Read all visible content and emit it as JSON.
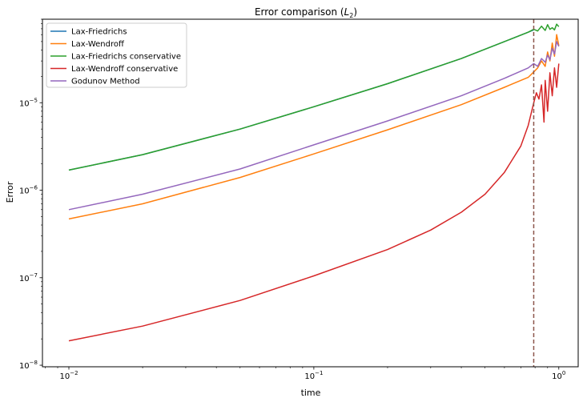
{
  "chart_data": {
    "type": "line",
    "title": "Error comparison (L2)",
    "title_main": "Error comparison (",
    "title_sym": "L",
    "title_sub": "2",
    "title_close": ")",
    "xlabel": "time",
    "ylabel": "Error",
    "xscale": "log",
    "yscale": "log",
    "xlim": [
      0.0078,
      1.2
    ],
    "ylim": [
      9.6e-09,
      9e-05
    ],
    "grid": false,
    "legend_position": "top-left",
    "x_ticks": [
      {
        "value": 0.01,
        "base": "10",
        "exp": "−2"
      },
      {
        "value": 0.1,
        "base": "10",
        "exp": "−1"
      },
      {
        "value": 1,
        "base": "10",
        "exp": "0"
      }
    ],
    "y_ticks": [
      {
        "value": 1e-08,
        "base": "10",
        "exp": "−8"
      },
      {
        "value": 1e-07,
        "base": "10",
        "exp": "−7"
      },
      {
        "value": 1e-06,
        "base": "10",
        "exp": "−6"
      },
      {
        "value": 1e-05,
        "base": "10",
        "exp": "−5"
      }
    ],
    "vline": {
      "x": 0.79,
      "color": "#8c564b",
      "style": "dashed"
    },
    "series": [
      {
        "name": "Lax-Friedrichs",
        "color": "#1f77b4",
        "x": [
          0.01,
          0.02,
          0.05,
          0.1,
          0.2,
          0.4,
          0.6,
          0.75,
          0.79
        ],
        "y": [
          1.7e-06,
          2.55e-06,
          5e-06,
          9e-06,
          1.65e-05,
          3.2e-05,
          5e-05,
          6.4e-05,
          6.8e-05
        ]
      },
      {
        "name": "Lax-Wendroff",
        "color": "#ff7f0e",
        "x": [
          0.01,
          0.02,
          0.05,
          0.1,
          0.2,
          0.4,
          0.6,
          0.75,
          0.79,
          0.82,
          0.85,
          0.88,
          0.9,
          0.92,
          0.94,
          0.96,
          0.98,
          1.0
        ],
        "y": [
          4.7e-07,
          7e-07,
          1.4e-06,
          2.6e-06,
          4.9e-06,
          9.5e-06,
          1.5e-05,
          1.95e-05,
          2.25e-05,
          2.5e-05,
          3e-05,
          2.6e-05,
          3.8e-05,
          3e-05,
          4.8e-05,
          3.4e-05,
          6e-05,
          4.5e-05
        ]
      },
      {
        "name": "Lax-Friedrichs conservative",
        "color": "#2ca02c",
        "x": [
          0.01,
          0.02,
          0.05,
          0.1,
          0.2,
          0.4,
          0.6,
          0.75,
          0.79,
          0.82,
          0.85,
          0.88,
          0.9,
          0.92,
          0.94,
          0.96,
          0.98,
          1.0
        ],
        "y": [
          1.7e-06,
          2.55e-06,
          5e-06,
          9e-06,
          1.65e-05,
          3.2e-05,
          5e-05,
          6.4e-05,
          6.9e-05,
          6.6e-05,
          7.5e-05,
          6.7e-05,
          7.8e-05,
          6.9e-05,
          7.2e-05,
          6.8e-05,
          7.9e-05,
          7.4e-05
        ]
      },
      {
        "name": "Lax-Wendroff conservative",
        "color": "#d62728",
        "x": [
          0.01,
          0.02,
          0.05,
          0.1,
          0.2,
          0.3,
          0.4,
          0.5,
          0.6,
          0.7,
          0.75,
          0.79,
          0.81,
          0.83,
          0.85,
          0.87,
          0.88,
          0.9,
          0.92,
          0.94,
          0.96,
          0.98,
          1.0
        ],
        "y": [
          1.9e-08,
          2.8e-08,
          5.5e-08,
          1.05e-07,
          2.1e-07,
          3.5e-07,
          5.6e-07,
          9e-07,
          1.6e-06,
          3.2e-06,
          5.5e-06,
          1e-05,
          1.3e-05,
          1.1e-05,
          1.6e-05,
          6e-06,
          1.8e-05,
          8e-06,
          2.2e-05,
          1.2e-05,
          2.5e-05,
          1.5e-05,
          2.8e-05
        ]
      },
      {
        "name": "Godunov Method",
        "color": "#9467bd",
        "x": [
          0.01,
          0.02,
          0.05,
          0.1,
          0.2,
          0.4,
          0.6,
          0.75,
          0.79,
          0.82,
          0.85,
          0.88,
          0.9,
          0.92,
          0.94,
          0.96,
          0.98,
          1.0
        ],
        "y": [
          6e-07,
          9e-07,
          1.75e-06,
          3.3e-06,
          6.2e-06,
          1.2e-05,
          1.9e-05,
          2.5e-05,
          2.8e-05,
          2.6e-05,
          3.2e-05,
          2.9e-05,
          3.5e-05,
          3.1e-05,
          4.2e-05,
          3.6e-05,
          5e-05,
          4.4e-05
        ]
      }
    ]
  }
}
